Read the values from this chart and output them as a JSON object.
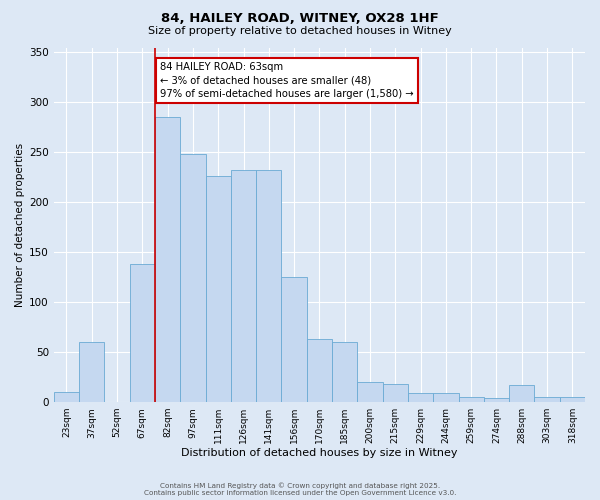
{
  "title": "84, HAILEY ROAD, WITNEY, OX28 1HF",
  "subtitle": "Size of property relative to detached houses in Witney",
  "xlabel": "Distribution of detached houses by size in Witney",
  "ylabel": "Number of detached properties",
  "bar_color": "#c5d8f0",
  "bar_edge_color": "#6aaad4",
  "background_color": "#dde8f5",
  "grid_color": "#ffffff",
  "categories": [
    "23sqm",
    "37sqm",
    "52sqm",
    "67sqm",
    "82sqm",
    "97sqm",
    "111sqm",
    "126sqm",
    "141sqm",
    "156sqm",
    "170sqm",
    "185sqm",
    "200sqm",
    "215sqm",
    "229sqm",
    "244sqm",
    "259sqm",
    "274sqm",
    "288sqm",
    "303sqm",
    "318sqm"
  ],
  "values": [
    10,
    60,
    0,
    138,
    285,
    248,
    226,
    232,
    232,
    125,
    63,
    60,
    20,
    18,
    9,
    9,
    5,
    4,
    17,
    5,
    5
  ],
  "ylim": [
    0,
    355
  ],
  "yticks": [
    0,
    50,
    100,
    150,
    200,
    250,
    300,
    350
  ],
  "vline_x": 3.5,
  "vline_color": "#cc0000",
  "annotation_text": "84 HAILEY ROAD: 63sqm\n← 3% of detached houses are smaller (48)\n97% of semi-detached houses are larger (1,580) →",
  "annotation_box_color": "#ffffff",
  "annotation_box_edge_color": "#cc0000",
  "footer_line1": "Contains HM Land Registry data © Crown copyright and database right 2025.",
  "footer_line2": "Contains public sector information licensed under the Open Government Licence v3.0."
}
